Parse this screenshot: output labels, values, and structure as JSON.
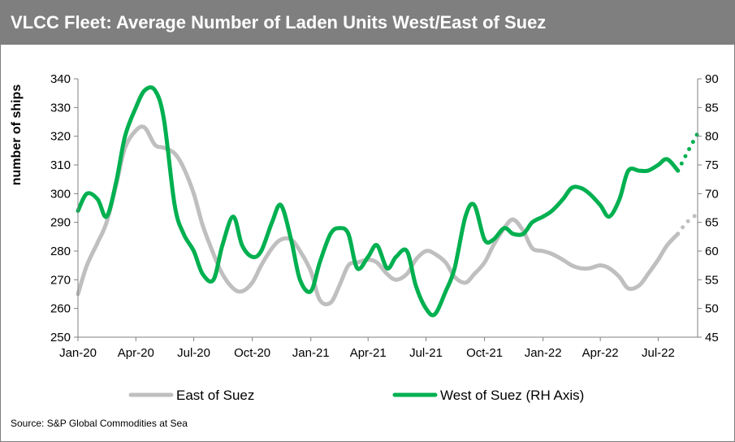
{
  "title": "VLCC Fleet: Average Number of Laden Units West/East of Suez",
  "source": "Source: S&P Global Commodities at Sea",
  "chart_data": {
    "type": "line",
    "ylabel": "number of ships",
    "y_left": {
      "min": 250,
      "max": 340,
      "step": 10
    },
    "y_right": {
      "min": 45,
      "max": 90,
      "step": 5
    },
    "x_range": [
      "2020-01",
      "2022-09"
    ],
    "x_ticks": [
      "Jan-20",
      "Apr-20",
      "Jul-20",
      "Oct-20",
      "Jan-21",
      "Apr-21",
      "Jul-21",
      "Oct-21",
      "Jan-22",
      "Apr-22",
      "Jul-22"
    ],
    "x_tick_months": [
      "2020-01",
      "2020-04",
      "2020-07",
      "2020-10",
      "2021-01",
      "2021-04",
      "2021-07",
      "2021-10",
      "2022-01",
      "2022-04",
      "2022-07"
    ],
    "grid": false,
    "legend_position": "bottom",
    "series": [
      {
        "name": "East of Suez",
        "axis": "left",
        "color": "#bfbfbf",
        "x": [
          "2020-01-01",
          "2020-01-15",
          "2020-02-01",
          "2020-02-15",
          "2020-03-01",
          "2020-03-15",
          "2020-04-01",
          "2020-04-15",
          "2020-05-01",
          "2020-05-15",
          "2020-06-01",
          "2020-06-15",
          "2020-07-01",
          "2020-07-15",
          "2020-08-01",
          "2020-08-15",
          "2020-09-01",
          "2020-09-15",
          "2020-10-01",
          "2020-10-15",
          "2020-11-01",
          "2020-11-15",
          "2020-12-01",
          "2020-12-15",
          "2021-01-01",
          "2021-01-15",
          "2021-02-01",
          "2021-02-15",
          "2021-03-01",
          "2021-03-15",
          "2021-04-01",
          "2021-04-15",
          "2021-05-01",
          "2021-05-15",
          "2021-06-01",
          "2021-06-15",
          "2021-07-01",
          "2021-07-15",
          "2021-08-01",
          "2021-08-15",
          "2021-09-01",
          "2021-09-15",
          "2021-10-01",
          "2021-10-15",
          "2021-11-01",
          "2021-11-15",
          "2021-12-01",
          "2021-12-15",
          "2022-01-01",
          "2022-01-15",
          "2022-02-01",
          "2022-02-15",
          "2022-03-01",
          "2022-03-15",
          "2022-04-01",
          "2022-04-15",
          "2022-05-01",
          "2022-05-15",
          "2022-06-01",
          "2022-06-15",
          "2022-07-01",
          "2022-07-15",
          "2022-08-01"
        ],
        "values": [
          265,
          275,
          283,
          290,
          303,
          316,
          322,
          323,
          317,
          316,
          314,
          309,
          300,
          289,
          279,
          272,
          267,
          266,
          269,
          275,
          281,
          284,
          284,
          280,
          273,
          263,
          262,
          268,
          275,
          276,
          277,
          276,
          272,
          270,
          272,
          277,
          280,
          279,
          276,
          271,
          269,
          272,
          276,
          282,
          288,
          291,
          287,
          281,
          280,
          279,
          277,
          275,
          274,
          274,
          275,
          274,
          271,
          267,
          268,
          272,
          277,
          282,
          286
        ],
        "forecast": {
          "x": [
            "2022-08-01",
            "2022-08-15",
            "2022-09-01"
          ],
          "values": [
            286,
            290,
            293
          ]
        }
      },
      {
        "name": "West of Suez (RH Axis)",
        "axis": "right",
        "color": "#00b050",
        "x": [
          "2020-01-01",
          "2020-01-15",
          "2020-02-01",
          "2020-02-15",
          "2020-03-01",
          "2020-03-15",
          "2020-04-01",
          "2020-04-15",
          "2020-05-01",
          "2020-05-15",
          "2020-06-01",
          "2020-06-15",
          "2020-07-01",
          "2020-07-15",
          "2020-08-01",
          "2020-08-15",
          "2020-09-01",
          "2020-09-15",
          "2020-10-01",
          "2020-10-15",
          "2020-11-01",
          "2020-11-15",
          "2020-12-01",
          "2020-12-15",
          "2021-01-01",
          "2021-01-15",
          "2021-02-01",
          "2021-02-15",
          "2021-03-01",
          "2021-03-15",
          "2021-04-01",
          "2021-04-15",
          "2021-05-01",
          "2021-05-15",
          "2021-06-01",
          "2021-06-15",
          "2021-07-01",
          "2021-07-15",
          "2021-08-01",
          "2021-08-15",
          "2021-09-01",
          "2021-09-15",
          "2021-10-01",
          "2021-10-15",
          "2021-11-01",
          "2021-11-15",
          "2021-12-01",
          "2021-12-15",
          "2022-01-01",
          "2022-01-15",
          "2022-02-01",
          "2022-02-15",
          "2022-03-01",
          "2022-03-15",
          "2022-04-01",
          "2022-04-15",
          "2022-05-01",
          "2022-05-15",
          "2022-06-01",
          "2022-06-15",
          "2022-07-01",
          "2022-07-15",
          "2022-08-01"
        ],
        "values": [
          67,
          70,
          69,
          66,
          72,
          80,
          85,
          88,
          88,
          83,
          68,
          63,
          60,
          56,
          55,
          61,
          66,
          61,
          59,
          60,
          65,
          68,
          62,
          55,
          53,
          58,
          63,
          64,
          63,
          57,
          59,
          61,
          57,
          59,
          60,
          54,
          50,
          49,
          53,
          57,
          66,
          68,
          62,
          62,
          64,
          63,
          63,
          65,
          66,
          67,
          69,
          71,
          71,
          70,
          68,
          66,
          69,
          74,
          74,
          74,
          75,
          76,
          74
        ],
        "forecast": {
          "x": [
            "2022-08-01",
            "2022-08-15",
            "2022-09-01"
          ],
          "values": [
            74,
            77,
            80.5
          ]
        }
      }
    ]
  }
}
